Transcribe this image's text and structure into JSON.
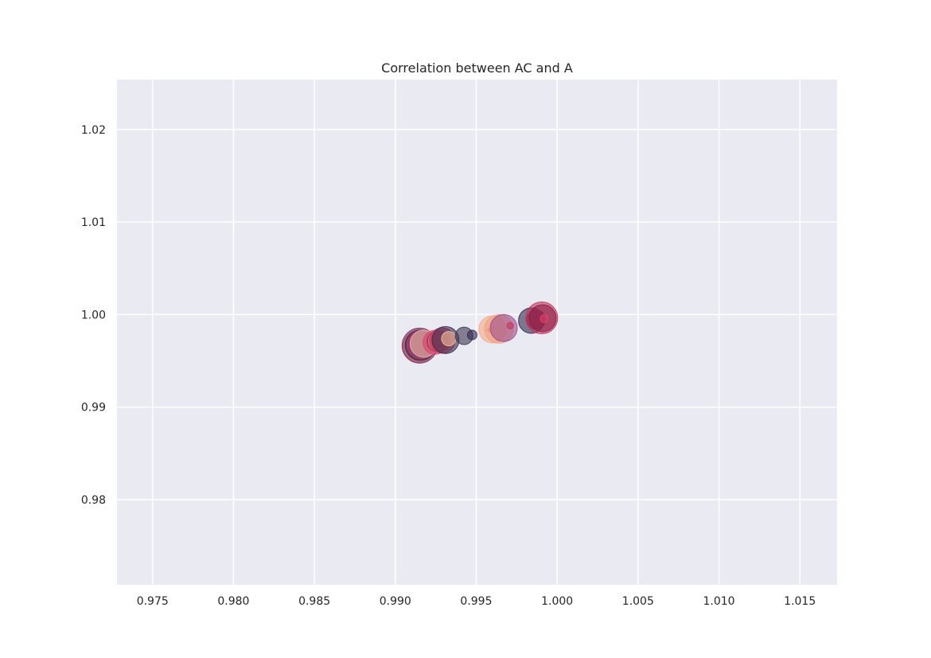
{
  "chart_data": {
    "type": "scatter",
    "title": "Correlation between AC and A",
    "xlabel": "",
    "ylabel": "",
    "xlim": [
      0.9728,
      1.0173
    ],
    "ylim": [
      0.9708,
      1.0254
    ],
    "x_ticks": [
      0.975,
      0.98,
      0.985,
      0.99,
      0.995,
      1.0,
      1.005,
      1.01,
      1.015
    ],
    "x_tick_labels": [
      "0.975",
      "0.980",
      "0.985",
      "0.990",
      "0.995",
      "1.000",
      "1.005",
      "1.010",
      "1.015"
    ],
    "y_ticks": [
      0.98,
      0.99,
      1.0,
      1.01,
      1.02
    ],
    "y_tick_labels": [
      "0.98",
      "0.99",
      "1.00",
      "1.01",
      "1.02"
    ],
    "grid": true,
    "background_color": "#eaeaf2",
    "grid_color": "#ffffff",
    "points": [
      {
        "x": 0.99145,
        "y": 0.99655,
        "size": 20,
        "color": "#f2a07b"
      },
      {
        "x": 0.9915,
        "y": 0.99665,
        "size": 22,
        "color": "#7d2a5c"
      },
      {
        "x": 0.99155,
        "y": 0.9967,
        "size": 19,
        "color": "#2f2a4b"
      },
      {
        "x": 0.9916,
        "y": 0.99675,
        "size": 18,
        "color": "#b23a6e"
      },
      {
        "x": 0.99175,
        "y": 0.99685,
        "size": 17,
        "color": "#e8bca8"
      },
      {
        "x": 0.99245,
        "y": 0.997,
        "size": 15,
        "color": "#e0406b"
      },
      {
        "x": 0.9926,
        "y": 0.9971,
        "size": 13,
        "color": "#9b2f5e"
      },
      {
        "x": 0.99275,
        "y": 0.99715,
        "size": 14,
        "color": "#f0866a"
      },
      {
        "x": 0.9929,
        "y": 0.9972,
        "size": 16,
        "color": "#c7325c"
      },
      {
        "x": 0.9931,
        "y": 0.99725,
        "size": 17,
        "color": "#3a2f52"
      },
      {
        "x": 0.9933,
        "y": 0.9974,
        "size": 9,
        "color": "#f5c09a"
      },
      {
        "x": 0.99425,
        "y": 0.9977,
        "size": 11,
        "color": "#3d3550"
      },
      {
        "x": 0.99475,
        "y": 0.9978,
        "size": 6,
        "color": "#2f2a4b"
      },
      {
        "x": 0.9958,
        "y": 0.9983,
        "size": 2,
        "color": "#c7325c"
      },
      {
        "x": 0.996,
        "y": 0.9984,
        "size": 17,
        "color": "#f7a98a"
      },
      {
        "x": 0.9964,
        "y": 0.99845,
        "size": 18,
        "color": "#f2a07b"
      },
      {
        "x": 0.9967,
        "y": 0.99855,
        "size": 17,
        "color": "#9d4d8e"
      },
      {
        "x": 0.9971,
        "y": 0.9988,
        "size": 4,
        "color": "#c7325c"
      },
      {
        "x": 0.9984,
        "y": 0.99935,
        "size": 16,
        "color": "#2f2a4b"
      },
      {
        "x": 0.9987,
        "y": 0.99945,
        "size": 12,
        "color": "#6a2457"
      },
      {
        "x": 0.99905,
        "y": 0.99965,
        "size": 20,
        "color": "#c7325c"
      },
      {
        "x": 0.9991,
        "y": 0.9996,
        "size": 17,
        "color": "#8b1f45"
      },
      {
        "x": 0.9992,
        "y": 0.99955,
        "size": 5,
        "color": "#e0406b"
      }
    ]
  }
}
